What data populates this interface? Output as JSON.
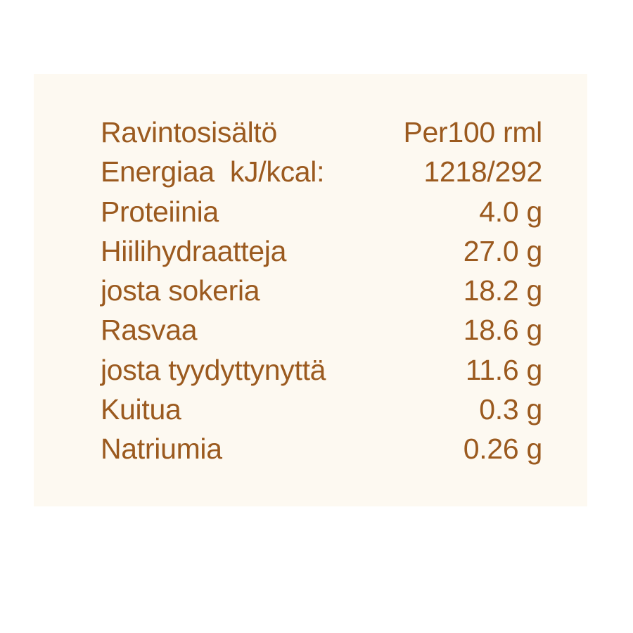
{
  "colors": {
    "text": "#9b5a1f",
    "panel": "#fdf9f1"
  },
  "header": {
    "label": "Ravintosisältö",
    "value": "Per100 rml"
  },
  "rows": [
    {
      "label": "Energiaa  kJ/kcal:",
      "value": "1218/292"
    },
    {
      "label": "Proteiinia",
      "value": "4.0 g"
    },
    {
      "label": "Hiilihydraatteja",
      "value": "27.0 g"
    },
    {
      "label": "josta sokeria",
      "value": "18.2 g"
    },
    {
      "label": "Rasvaa",
      "value": "18.6 g"
    },
    {
      "label": "josta tyydyttynyttä",
      "value": "11.6 g"
    },
    {
      "label": "Kuitua",
      "value": "0.3 g"
    },
    {
      "label": "Natriumia",
      "value": "0.26 g"
    }
  ]
}
